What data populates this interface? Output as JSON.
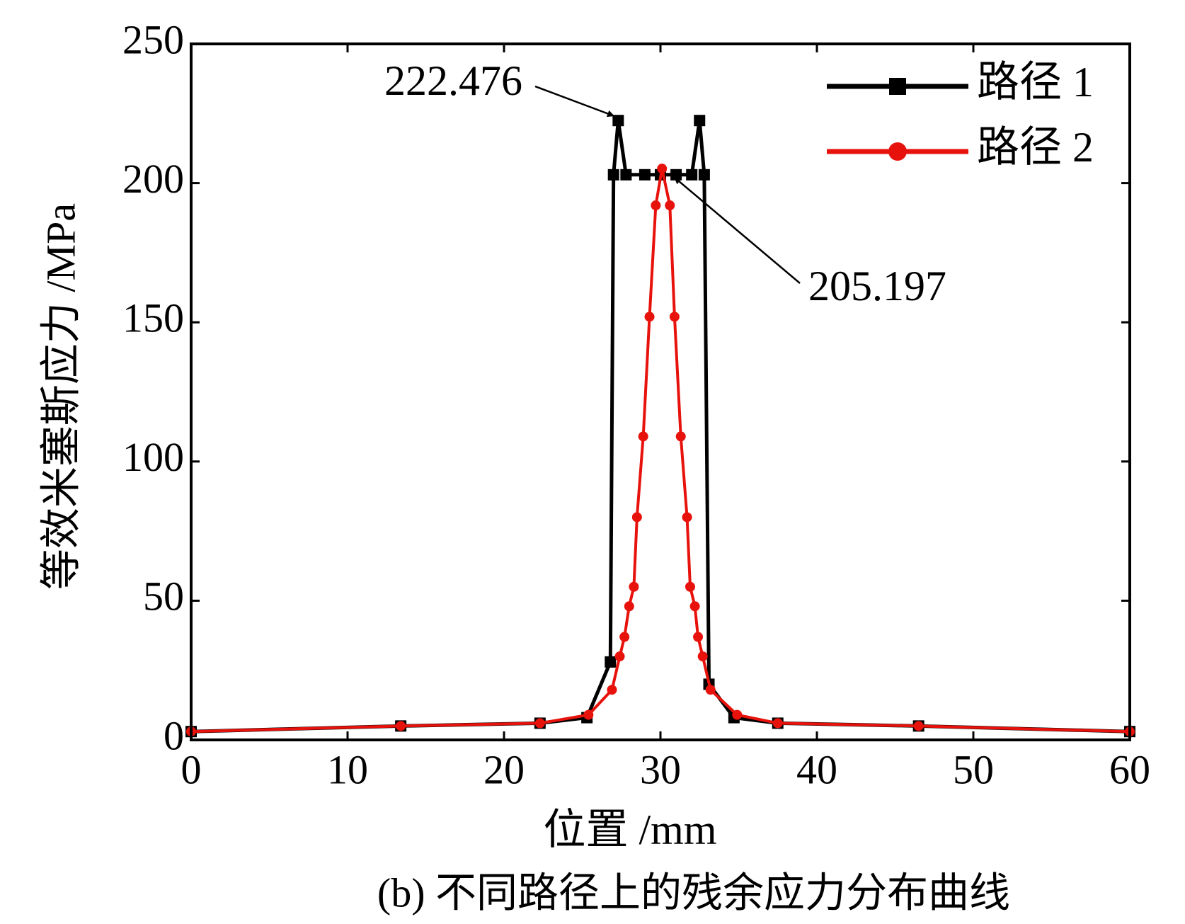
{
  "chart_data": {
    "type": "line",
    "title": "(b) 不同路径上的残余应力分布曲线",
    "xlabel": "位置 /mm",
    "ylabel": "等效米塞斯应力 /MPa",
    "xlim": [
      0,
      60
    ],
    "ylim": [
      0,
      250
    ],
    "xticks": [
      0,
      10,
      20,
      30,
      40,
      50,
      60
    ],
    "yticks": [
      0,
      50,
      100,
      150,
      200,
      250
    ],
    "legend": "upper right",
    "series": [
      {
        "name": "路径 1",
        "color": "#000000",
        "marker": "square",
        "x": [
          0,
          13.4,
          22.3,
          25.3,
          26.8,
          27.0,
          27.3,
          27.8,
          29,
          30,
          31,
          32,
          32.5,
          32.8,
          33.1,
          34.7,
          37.5,
          46.5,
          60
        ],
        "values": [
          3,
          5,
          6,
          8,
          28,
          203,
          222.476,
          203,
          203,
          203,
          203,
          203,
          222.476,
          203,
          20,
          8,
          6,
          5,
          3
        ]
      },
      {
        "name": "路径 2",
        "color": "#e8120c",
        "marker": "circle",
        "x": [
          0,
          13.4,
          22.3,
          25.4,
          26.9,
          27.4,
          27.7,
          28.0,
          28.3,
          28.5,
          28.9,
          29.3,
          29.7,
          30.1,
          30.6,
          30.9,
          31.3,
          31.7,
          31.9,
          32.2,
          32.4,
          32.7,
          33.2,
          34.9,
          37.5,
          46.5,
          60
        ],
        "values": [
          3,
          5,
          6,
          9,
          18,
          30,
          37,
          48,
          55,
          80,
          109,
          152,
          192,
          205.197,
          192,
          152,
          109,
          80,
          55,
          48,
          37,
          30,
          18,
          9,
          6,
          5,
          3
        ]
      }
    ],
    "annotations": [
      {
        "text": "222.476"
      },
      {
        "text": "205.197"
      }
    ]
  }
}
